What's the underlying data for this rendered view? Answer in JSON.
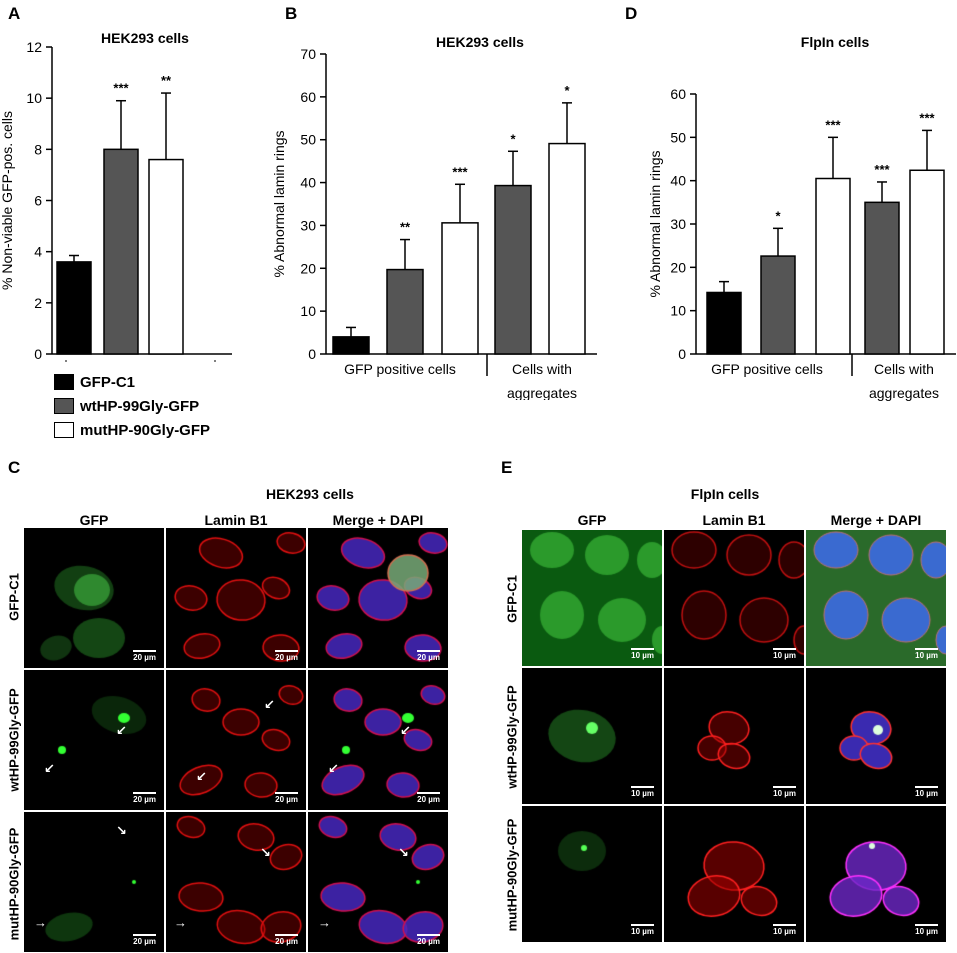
{
  "panels": {
    "A": "A",
    "B": "B",
    "C": "C",
    "D": "D",
    "E": "E"
  },
  "colors": {
    "gfp_c1": "#000000",
    "wt": "#555555",
    "mut": "#ffffff"
  },
  "legend": [
    {
      "label": "GFP-C1",
      "color": "#000000"
    },
    {
      "label": "wtHP-99Gly-GFP",
      "color": "#555555"
    },
    {
      "label": "mutHP-90Gly-GFP",
      "color": "#ffffff"
    }
  ],
  "chart_data": [
    {
      "panel": "A",
      "type": "bar",
      "title": "HEK293 cells",
      "ylabel": "% Non-viable GFP-pos. cells",
      "ylim": [
        0,
        12
      ],
      "yticks": [
        "0",
        "2",
        "4",
        "6",
        "8",
        "10",
        "12"
      ],
      "bars": [
        {
          "series": "GFP-C1",
          "value": 3.6,
          "error": 0.25,
          "sig": ""
        },
        {
          "series": "wtHP-99Gly-GFP",
          "value": 8.0,
          "error": 1.9,
          "sig": "***"
        },
        {
          "series": "mutHP-90Gly-GFP",
          "value": 7.6,
          "error": 2.6,
          "sig": "**"
        }
      ]
    },
    {
      "panel": "B",
      "type": "bar",
      "title": "HEK293 cells",
      "ylabel": "% Abnormal lamin rings",
      "ylim": [
        0,
        70
      ],
      "yticks": [
        "0",
        "10",
        "20",
        "30",
        "40",
        "50",
        "60",
        "70"
      ],
      "groups": [
        "GFP positive cells",
        "Cells with aggregates"
      ],
      "bars": [
        {
          "group": 0,
          "series": "GFP-C1",
          "value": 4,
          "error": 2.2,
          "sig": ""
        },
        {
          "group": 0,
          "series": "wtHP-99Gly-GFP",
          "value": 19.7,
          "error": 7,
          "sig": "**"
        },
        {
          "group": 0,
          "series": "mutHP-90Gly-GFP",
          "value": 30.6,
          "error": 9,
          "sig": "***"
        },
        {
          "group": 1,
          "series": "wtHP-99Gly-GFP",
          "value": 39.3,
          "error": 8,
          "sig": "*"
        },
        {
          "group": 1,
          "series": "mutHP-90Gly-GFP",
          "value": 49.1,
          "error": 9.5,
          "sig": "*"
        }
      ]
    },
    {
      "panel": "D",
      "type": "bar",
      "title": "FlpIn cells",
      "ylabel": "% Abnormal lamin rings",
      "ylim": [
        0,
        60
      ],
      "yticks": [
        "0",
        "10",
        "20",
        "30",
        "40",
        "50",
        "60"
      ],
      "groups": [
        "GFP positive cells",
        "Cells with aggregates"
      ],
      "bars": [
        {
          "group": 0,
          "series": "GFP-C1",
          "value": 14.2,
          "error": 2.5,
          "sig": ""
        },
        {
          "group": 0,
          "series": "wtHP-99Gly-GFP",
          "value": 22.6,
          "error": 6.4,
          "sig": "*"
        },
        {
          "group": 0,
          "series": "mutHP-90Gly-GFP",
          "value": 40.5,
          "error": 9.5,
          "sig": "***"
        },
        {
          "group": 1,
          "series": "wtHP-99Gly-GFP",
          "value": 35,
          "error": 4.7,
          "sig": "***"
        },
        {
          "group": 1,
          "series": "mutHP-90Gly-GFP",
          "value": 42.4,
          "error": 9.2,
          "sig": "***"
        }
      ]
    }
  ],
  "micro_C": {
    "title": "HEK293 cells",
    "columns": [
      "GFP",
      "Lamin B1",
      "Merge + DAPI"
    ],
    "rows": [
      "GFP-C1",
      "wtHP-99Gly-GFP",
      "mutHP-90Gly-GFP"
    ],
    "scale": "20 µm"
  },
  "micro_E": {
    "title": "FlpIn cells",
    "columns": [
      "GFP",
      "Lamin B1",
      "Merge + DAPI"
    ],
    "rows": [
      "GFP-C1",
      "wtHP-99Gly-GFP",
      "mutHP-90Gly-GFP"
    ],
    "scale": "10 µm"
  }
}
